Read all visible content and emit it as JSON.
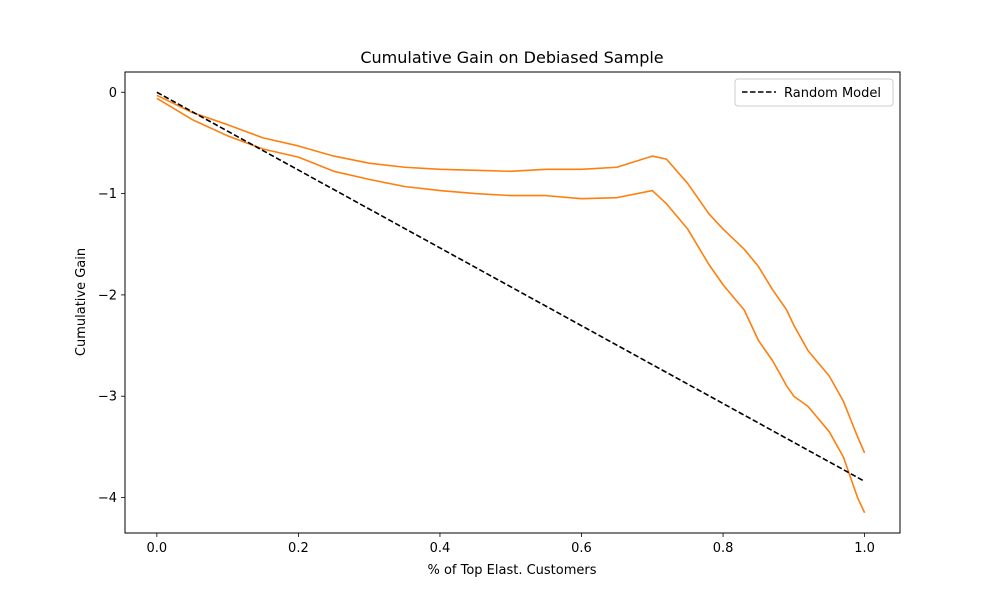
{
  "chart_data": {
    "type": "line",
    "title": "Cumulative Gain on Debiased Sample",
    "xlabel": "% of Top Elast. Customers",
    "ylabel": "Cumulative Gain",
    "xlim": [
      -0.045,
      1.05
    ],
    "ylim": [
      -4.35,
      0.2
    ],
    "xticks": [
      0.0,
      0.2,
      0.4,
      0.6,
      0.8,
      1.0
    ],
    "xtick_labels": [
      "0.0",
      "0.2",
      "0.4",
      "0.6",
      "0.8",
      "1.0"
    ],
    "yticks": [
      0,
      -1,
      -2,
      -3,
      -4
    ],
    "ytick_labels": [
      "0",
      "−1",
      "−2",
      "−3",
      "−4"
    ],
    "grid": false,
    "legend": {
      "position": "top-right",
      "entries": [
        "Random Model"
      ]
    },
    "series": [
      {
        "name": "",
        "color": "#ff7f0e",
        "style": "solid",
        "x": [
          0.0,
          0.05,
          0.1,
          0.15,
          0.2,
          0.25,
          0.3,
          0.35,
          0.4,
          0.45,
          0.5,
          0.55,
          0.6,
          0.65,
          0.7,
          0.72,
          0.75,
          0.78,
          0.8,
          0.83,
          0.85,
          0.87,
          0.89,
          0.9,
          0.92,
          0.95,
          0.97,
          0.99,
          1.0
        ],
        "y": [
          -0.03,
          -0.2,
          -0.32,
          -0.45,
          -0.53,
          -0.63,
          -0.7,
          -0.74,
          -0.76,
          -0.77,
          -0.78,
          -0.76,
          -0.76,
          -0.74,
          -0.63,
          -0.66,
          -0.9,
          -1.2,
          -1.35,
          -1.55,
          -1.72,
          -1.95,
          -2.15,
          -2.3,
          -2.55,
          -2.8,
          -3.05,
          -3.4,
          -3.56
        ]
      },
      {
        "name": "",
        "color": "#ff7f0e",
        "style": "solid",
        "x": [
          0.0,
          0.05,
          0.1,
          0.15,
          0.2,
          0.25,
          0.3,
          0.35,
          0.4,
          0.45,
          0.5,
          0.55,
          0.6,
          0.65,
          0.7,
          0.72,
          0.75,
          0.78,
          0.8,
          0.83,
          0.85,
          0.87,
          0.89,
          0.9,
          0.92,
          0.95,
          0.97,
          0.99,
          1.0
        ],
        "y": [
          -0.06,
          -0.27,
          -0.43,
          -0.56,
          -0.64,
          -0.78,
          -0.86,
          -0.93,
          -0.97,
          -1.0,
          -1.02,
          -1.02,
          -1.05,
          -1.04,
          -0.97,
          -1.1,
          -1.35,
          -1.7,
          -1.9,
          -2.15,
          -2.45,
          -2.65,
          -2.9,
          -3.0,
          -3.1,
          -3.35,
          -3.6,
          -4.0,
          -4.15
        ]
      },
      {
        "name": "Random Model",
        "color": "#000000",
        "style": "dashed",
        "x": [
          0.0,
          1.0
        ],
        "y": [
          0.0,
          -3.84
        ]
      }
    ]
  }
}
